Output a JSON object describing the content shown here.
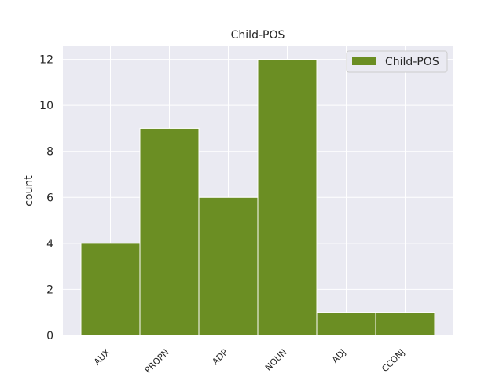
{
  "chart_data": {
    "type": "bar",
    "title": "Child-POS",
    "xlabel": "",
    "ylabel": "count",
    "categories": [
      "AUX",
      "PROPN",
      "ADP",
      "NOUN",
      "ADJ",
      "CCONJ"
    ],
    "series": [
      {
        "name": "Child-POS",
        "values": [
          4,
          9,
          6,
          12,
          1,
          1
        ],
        "color": "#6b8e23"
      }
    ],
    "ylim": [
      0,
      12.6
    ],
    "yticks": [
      0,
      2,
      4,
      6,
      8,
      10,
      12
    ],
    "grid": true,
    "legend_position": "top-right",
    "background_color": "#eaeaf2",
    "grid_color": "#ffffff"
  }
}
